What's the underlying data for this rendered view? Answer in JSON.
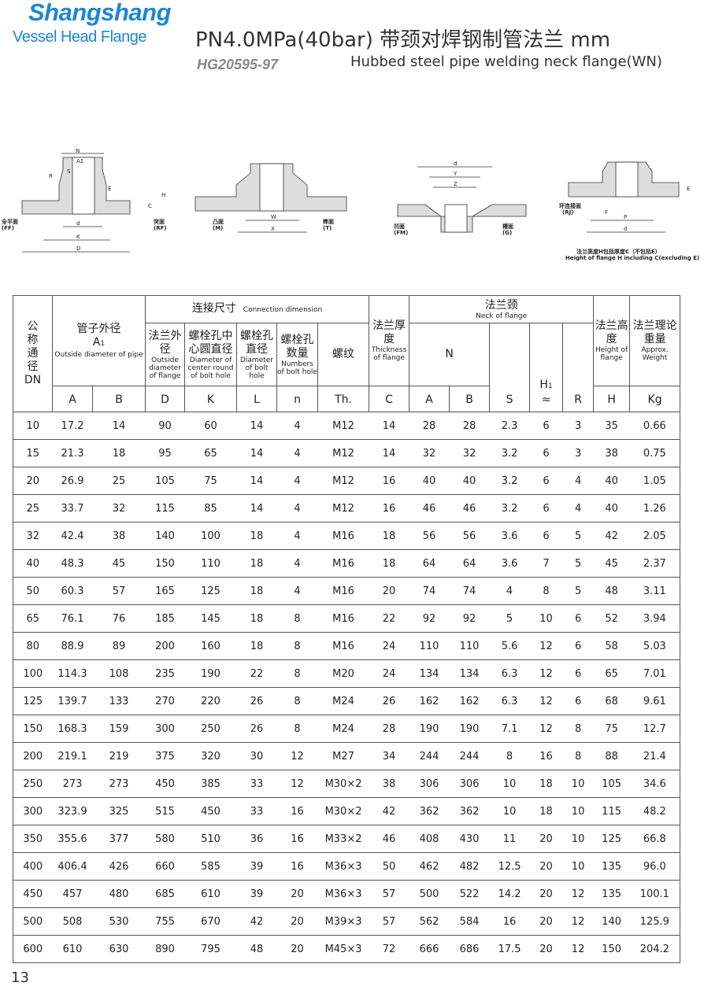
{
  "header": {
    "logo_main": "Shangshang",
    "logo_sub": "Vessel Head Flange",
    "title": "PN4.0MPa(40bar) 带颈对焊钢制管法兰 mm",
    "standard": "HG20595-97",
    "subtitle_en": "Hubbed steel pipe welding neck flange(WN)"
  },
  "diagrams": {
    "d1": {
      "n": "N",
      "a1": "A1",
      "r": "R",
      "s": "S",
      "e": "E",
      "h": "H",
      "c": "C",
      "d": "d",
      "k": "K",
      "dd": "D",
      "ff": "全平面",
      "ff_en": "(FF)",
      "rf": "突面",
      "rf_en": "(RF)"
    },
    "d2": {
      "w": "W",
      "x": "X",
      "m": "凸面",
      "m_en": "(M)",
      "t": "榫面",
      "t_en": "(T)"
    },
    "d3": {
      "d": "d",
      "y": "Y",
      "z": "Z",
      "fm": "凹面",
      "fm_en": "(FM)",
      "g": "槽面",
      "g_en": "(G)"
    },
    "d4": {
      "rj": "环连接面",
      "rj_en": "(RJ)",
      "e": "E",
      "f": "F",
      "p": "P",
      "d": "d",
      "note_cn": "法兰高度H包括厚度C（不包括E）",
      "note_en": "Height of flange H including C(excluding E)"
    }
  },
  "table": {
    "header": {
      "dn_cn": "公称通径",
      "dn": "DN",
      "pipe_cn": "管子外径",
      "pipe_sym": "A",
      "pipe_sub": "1",
      "pipe_en": "Outside diameter of pipe",
      "conn_cn": "连接尺寸",
      "conn_en": "Connection dimension",
      "d_cn": "法兰外径",
      "d_en": "Outside diameter of flange",
      "k_cn": "螺栓孔中心圆直径",
      "k_en": "Diameter of center round of bolt hole",
      "l_cn": "螺栓孔直径",
      "l_en": "Diameter of bolt hole",
      "n_cn": "螺栓孔数量",
      "n_en": "Numbers of bolt hole",
      "th_cn": "螺纹",
      "c_cn": "法兰厚度",
      "c_en": "Thickness of flange",
      "neck_cn": "法兰颈",
      "neck_en": "Neck of flange",
      "neck_n": "N",
      "h_cn": "法兰高度",
      "h_en": "Height of flange",
      "w_cn": "法兰理论重量",
      "w_en": "Approx. Weight",
      "h1_sym": "H",
      "h1_sub": "1",
      "h1_approx": "≈",
      "letters": [
        "A",
        "B",
        "D",
        "K",
        "L",
        "n",
        "Th.",
        "C",
        "A",
        "B",
        "S",
        "R",
        "H",
        "Kg"
      ]
    },
    "rows": [
      [
        "10",
        "17.2",
        "14",
        "90",
        "60",
        "14",
        "4",
        "M12",
        "14",
        "28",
        "28",
        "2.3",
        "6",
        "3",
        "35",
        "0.66"
      ],
      [
        "15",
        "21.3",
        "18",
        "95",
        "65",
        "14",
        "4",
        "M12",
        "14",
        "32",
        "32",
        "3.2",
        "6",
        "3",
        "38",
        "0.75"
      ],
      [
        "20",
        "26.9",
        "25",
        "105",
        "75",
        "14",
        "4",
        "M12",
        "16",
        "40",
        "40",
        "3.2",
        "6",
        "4",
        "40",
        "1.05"
      ],
      [
        "25",
        "33.7",
        "32",
        "115",
        "85",
        "14",
        "4",
        "M12",
        "16",
        "46",
        "46",
        "3.2",
        "6",
        "4",
        "40",
        "1.26"
      ],
      [
        "32",
        "42.4",
        "38",
        "140",
        "100",
        "18",
        "4",
        "M16",
        "18",
        "56",
        "56",
        "3.6",
        "6",
        "5",
        "42",
        "2.05"
      ],
      [
        "40",
        "48.3",
        "45",
        "150",
        "110",
        "18",
        "4",
        "M16",
        "18",
        "64",
        "64",
        "3.6",
        "7",
        "5",
        "45",
        "2.37"
      ],
      [
        "50",
        "60.3",
        "57",
        "165",
        "125",
        "18",
        "4",
        "M16",
        "20",
        "74",
        "74",
        "4",
        "8",
        "5",
        "48",
        "3.11"
      ],
      [
        "65",
        "76.1",
        "76",
        "185",
        "145",
        "18",
        "8",
        "M16",
        "22",
        "92",
        "92",
        "5",
        "10",
        "6",
        "52",
        "3.94"
      ],
      [
        "80",
        "88.9",
        "89",
        "200",
        "160",
        "18",
        "8",
        "M16",
        "24",
        "110",
        "110",
        "5.6",
        "12",
        "6",
        "58",
        "5.03"
      ],
      [
        "100",
        "114.3",
        "108",
        "235",
        "190",
        "22",
        "8",
        "M20",
        "24",
        "134",
        "134",
        "6.3",
        "12",
        "6",
        "65",
        "7.01"
      ],
      [
        "125",
        "139.7",
        "133",
        "270",
        "220",
        "26",
        "8",
        "M24",
        "26",
        "162",
        "162",
        "6.3",
        "12",
        "6",
        "68",
        "9.61"
      ],
      [
        "150",
        "168.3",
        "159",
        "300",
        "250",
        "26",
        "8",
        "M24",
        "28",
        "190",
        "190",
        "7.1",
        "12",
        "8",
        "75",
        "12.7"
      ],
      [
        "200",
        "219.1",
        "219",
        "375",
        "320",
        "30",
        "12",
        "M27",
        "34",
        "244",
        "244",
        "8",
        "16",
        "8",
        "88",
        "21.4"
      ],
      [
        "250",
        "273",
        "273",
        "450",
        "385",
        "33",
        "12",
        "M30×2",
        "38",
        "306",
        "306",
        "10",
        "18",
        "10",
        "105",
        "34.6"
      ],
      [
        "300",
        "323.9",
        "325",
        "515",
        "450",
        "33",
        "16",
        "M30×2",
        "42",
        "362",
        "362",
        "10",
        "18",
        "10",
        "115",
        "48.2"
      ],
      [
        "350",
        "355.6",
        "377",
        "580",
        "510",
        "36",
        "16",
        "M33×2",
        "46",
        "408",
        "430",
        "11",
        "20",
        "10",
        "125",
        "66.8"
      ],
      [
        "400",
        "406.4",
        "426",
        "660",
        "585",
        "39",
        "16",
        "M36×3",
        "50",
        "462",
        "482",
        "12.5",
        "20",
        "10",
        "135",
        "96.0"
      ],
      [
        "450",
        "457",
        "480",
        "685",
        "610",
        "39",
        "20",
        "M36×3",
        "57",
        "500",
        "522",
        "14.2",
        "20",
        "12",
        "135",
        "100.1"
      ],
      [
        "500",
        "508",
        "530",
        "755",
        "670",
        "42",
        "20",
        "M39×3",
        "57",
        "562",
        "584",
        "16",
        "20",
        "12",
        "140",
        "125.9"
      ],
      [
        "600",
        "610",
        "630",
        "890",
        "795",
        "48",
        "20",
        "M45×3",
        "72",
        "666",
        "686",
        "17.5",
        "20",
        "12",
        "150",
        "204.2"
      ]
    ]
  },
  "footer": {
    "page": "13"
  }
}
